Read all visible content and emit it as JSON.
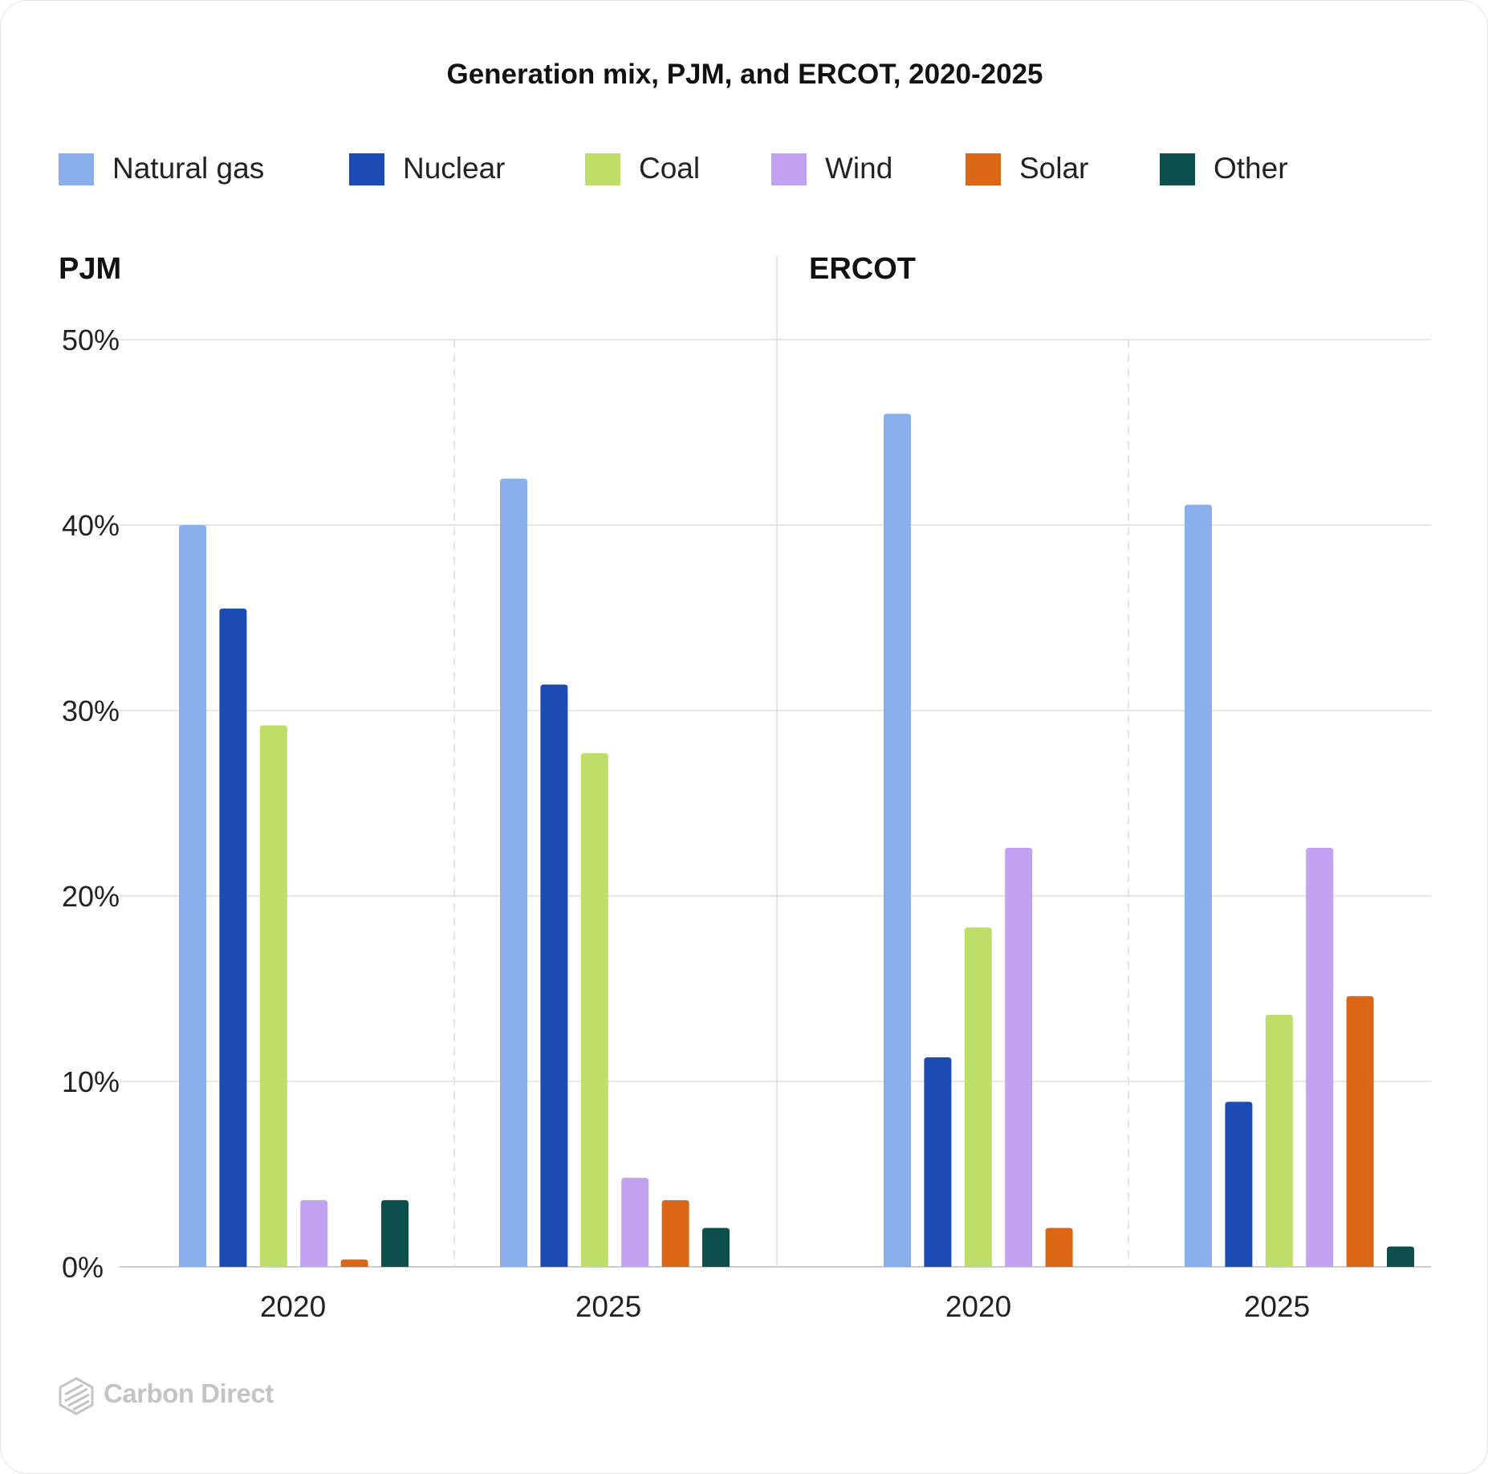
{
  "chart_title": "Generation mix, PJM, and ERCOT, 2020-2025",
  "legend": [
    {
      "label": "Natural gas",
      "color": "#8aaeec"
    },
    {
      "label": "Nuclear",
      "color": "#1c4bb4"
    },
    {
      "label": "Coal",
      "color": "#bedd69"
    },
    {
      "label": "Wind",
      "color": "#c1a2f2"
    },
    {
      "label": "Solar",
      "color": "#db6615"
    },
    {
      "label": "Other",
      "color": "#0c4f4c"
    }
  ],
  "branding": {
    "logo_text": "Carbon Direct",
    "logo_icon": "carbon-direct-logo-icon"
  },
  "chart_data": {
    "type": "bar",
    "title": "Generation mix, PJM, and ERCOT, 2020-2025",
    "ylabel": "",
    "ylim": [
      0,
      50
    ],
    "yticks": [
      0,
      10,
      20,
      30,
      40,
      50
    ],
    "ytick_labels": [
      "0%",
      "10%",
      "20%",
      "30%",
      "40%",
      "50%"
    ],
    "grid": true,
    "legend_position": "top",
    "categories": [
      "Natural gas",
      "Nuclear",
      "Coal",
      "Wind",
      "Solar",
      "Other"
    ],
    "panels": [
      {
        "name": "PJM",
        "groups": [
          {
            "label": "2020",
            "values": [
              40.0,
              35.5,
              29.2,
              3.6,
              0.4,
              3.6
            ]
          },
          {
            "label": "2025",
            "values": [
              42.5,
              31.4,
              27.7,
              4.8,
              3.6,
              2.1
            ]
          }
        ]
      },
      {
        "name": "ERCOT",
        "groups": [
          {
            "label": "2020",
            "values": [
              46.0,
              11.3,
              18.3,
              22.6,
              2.1,
              0
            ]
          },
          {
            "label": "2025",
            "values": [
              41.1,
              8.9,
              13.6,
              22.6,
              14.6,
              1.1
            ]
          }
        ]
      }
    ]
  }
}
